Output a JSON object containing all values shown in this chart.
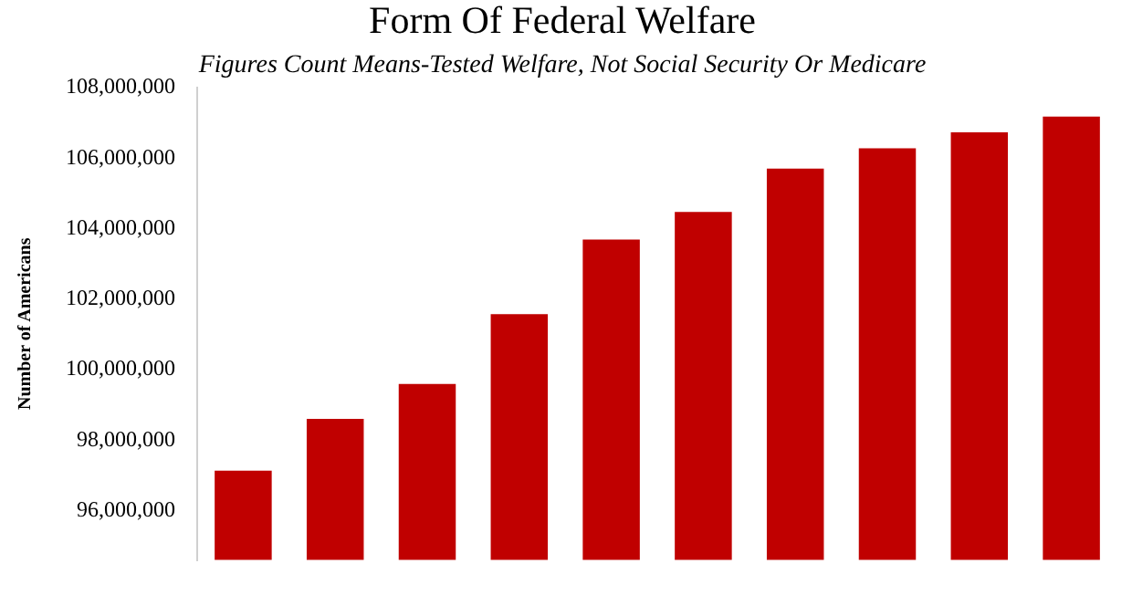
{
  "chart_data": {
    "type": "bar",
    "title": "Form Of Federal Welfare",
    "subtitle": "Figures Count Means-Tested Welfare, Not Social Security Or Medicare",
    "ylabel": "Number of Americans",
    "categories": [
      null,
      null,
      null,
      null,
      null,
      null,
      null,
      null,
      null,
      null
    ],
    "values": [
      97130000,
      98600000,
      99590000,
      101570000,
      103690000,
      104470000,
      105700000,
      106280000,
      106730000,
      107180000
    ],
    "color": "#c00000",
    "ylim": [
      94600000,
      108000000
    ],
    "yticks": [
      {
        "value": 96000000,
        "label": "96,000,000"
      },
      {
        "value": 98000000,
        "label": "98,000,000"
      },
      {
        "value": 100000000,
        "label": "100,000,000"
      },
      {
        "value": 102000000,
        "label": "102,000,000"
      },
      {
        "value": 104000000,
        "label": "104,000,000"
      },
      {
        "value": 106000000,
        "label": "106,000,000"
      },
      {
        "value": 108000000,
        "label": "108,000,000"
      }
    ],
    "grid": false,
    "legend": false
  }
}
